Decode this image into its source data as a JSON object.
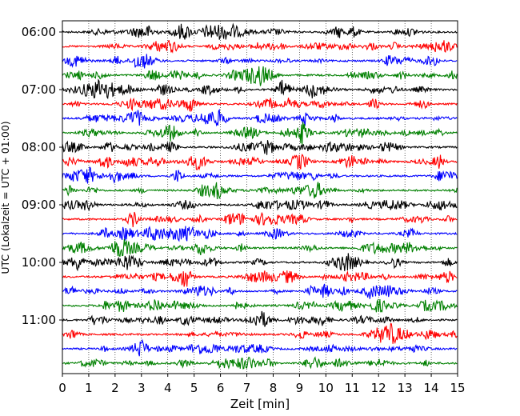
{
  "chart_data": {
    "type": "line",
    "title": "",
    "xlabel": "Zeit  [min]",
    "ylabel": "UTC (Lokalzeit = UTC + 01:00)",
    "xlim": [
      0,
      15
    ],
    "x_ticks": [
      "0",
      "1",
      "2",
      "3",
      "4",
      "5",
      "6",
      "7",
      "8",
      "9",
      "10",
      "11",
      "12",
      "13",
      "14",
      "15"
    ],
    "y_ticks": [
      "06:00",
      "07:00",
      "08:00",
      "09:00",
      "10:00",
      "11:00"
    ],
    "grid": "vertical dotted lines at each minute",
    "trace_interval_minutes": 15,
    "start_time_utc": "06:00",
    "trace_count": 24,
    "trace_colors": [
      "#000000",
      "#ff0000",
      "#0000ff",
      "#008000"
    ],
    "series": [
      {
        "start": "06:00"
      },
      {
        "start": "06:15"
      },
      {
        "start": "06:30"
      },
      {
        "start": "06:45"
      },
      {
        "start": "07:00"
      },
      {
        "start": "07:15"
      },
      {
        "start": "07:30"
      },
      {
        "start": "07:45"
      },
      {
        "start": "08:00"
      },
      {
        "start": "08:15"
      },
      {
        "start": "08:30"
      },
      {
        "start": "08:45"
      },
      {
        "start": "09:00"
      },
      {
        "start": "09:15"
      },
      {
        "start": "09:30"
      },
      {
        "start": "09:45"
      },
      {
        "start": "10:00"
      },
      {
        "start": "10:15"
      },
      {
        "start": "10:30"
      },
      {
        "start": "10:45"
      },
      {
        "start": "11:00"
      },
      {
        "start": "11:15"
      },
      {
        "start": "11:30"
      },
      {
        "start": "11:45"
      }
    ]
  }
}
